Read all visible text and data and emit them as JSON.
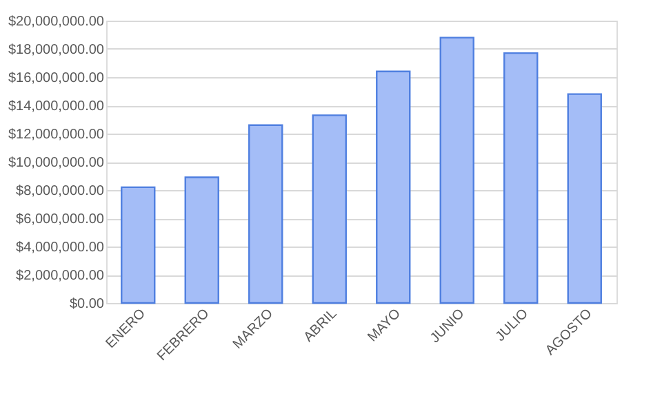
{
  "chart_data": {
    "type": "bar",
    "categories": [
      "ENERO",
      "FEBRERO",
      "MARZO",
      "ABRIL",
      "MAYO",
      "JUNIO",
      "JULIO",
      "AGOSTO"
    ],
    "values": [
      8200000,
      8900000,
      12600000,
      13300000,
      16400000,
      18800000,
      17700000,
      14800000
    ],
    "color": "#a4bdf7",
    "ylim": [
      0,
      20000000
    ],
    "yticks": [
      {
        "value": 0,
        "label": "$0.00"
      },
      {
        "value": 2000000,
        "label": "$2,000,000.00"
      },
      {
        "value": 4000000,
        "label": "$4,000,000.00"
      },
      {
        "value": 6000000,
        "label": "$6,000,000.00"
      },
      {
        "value": 8000000,
        "label": "$8,000,000.00"
      },
      {
        "value": 10000000,
        "label": "$10,000,000.00"
      },
      {
        "value": 12000000,
        "label": "$12,000,000.00"
      },
      {
        "value": 14000000,
        "label": "$14,000,000.00"
      },
      {
        "value": 16000000,
        "label": "$16,000,000.00"
      },
      {
        "value": 18000000,
        "label": "$18,000,000.00"
      },
      {
        "value": 20000000,
        "label": "$20,000,000.00"
      }
    ],
    "grid": "y"
  }
}
